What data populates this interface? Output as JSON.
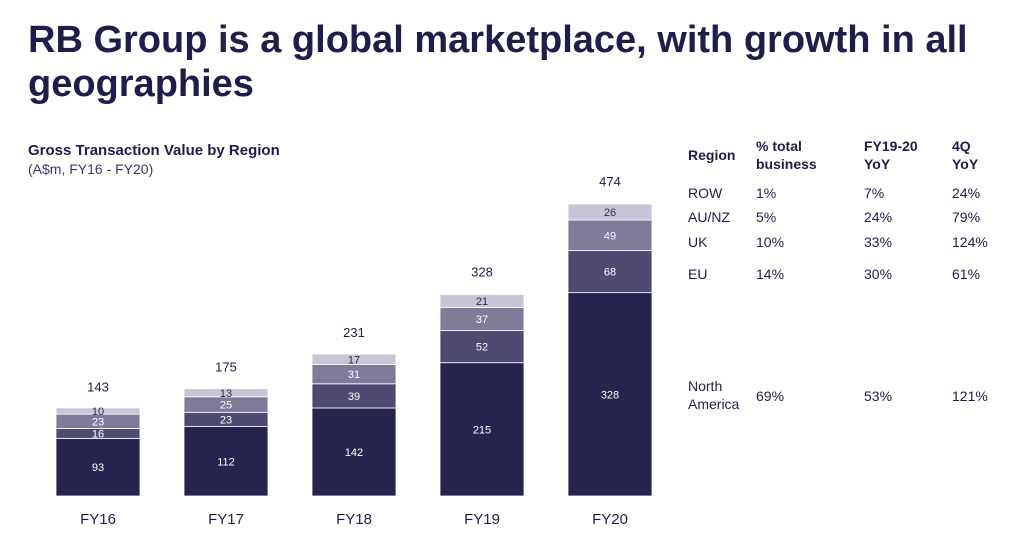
{
  "page": {
    "headline": "RB Group is a global marketplace, with growth in all geographies"
  },
  "chart_data": {
    "type": "bar",
    "stacked": true,
    "title": "Gross Transaction Value by Region",
    "subtitle": "(A$m, FY16 - FY20)",
    "categories": [
      "FY16",
      "FY17",
      "FY18",
      "FY19",
      "FY20"
    ],
    "totals": [
      143,
      175,
      231,
      328,
      474
    ],
    "series": [
      {
        "values": [
          93,
          112,
          142,
          215,
          328
        ],
        "color": "#26234f",
        "label_color": "#ffffff"
      },
      {
        "values": [
          16,
          23,
          39,
          52,
          68
        ],
        "color": "#4e4a72",
        "label_color": "#ffffff"
      },
      {
        "values": [
          23,
          25,
          31,
          37,
          49
        ],
        "color": "#7e7b98",
        "label_color": "#ffffff"
      },
      {
        "values": [
          10,
          13,
          17,
          21,
          26
        ],
        "color": "#c7c6d4",
        "label_color": "#2a2850"
      }
    ],
    "ylim": [
      0,
      500
    ],
    "grid": false,
    "legend": "none"
  },
  "table": {
    "headers": [
      {
        "line1": "Region",
        "line2": ""
      },
      {
        "line1": "% total",
        "line2": "business"
      },
      {
        "line1": "FY19-20",
        "line2": "YoY"
      },
      {
        "line1": "4Q",
        "line2": "YoY"
      }
    ],
    "rows": [
      {
        "region": "ROW",
        "region2": "",
        "pct": "1%",
        "fy": "7%",
        "q4": "24%"
      },
      {
        "region": "AU/NZ",
        "region2": "",
        "pct": "5%",
        "fy": "24%",
        "q4": "79%"
      },
      {
        "region": "UK",
        "region2": "",
        "pct": "10%",
        "fy": "33%",
        "q4": "124%"
      },
      {
        "region": "EU",
        "region2": "",
        "pct": "14%",
        "fy": "30%",
        "q4": "61%"
      },
      {
        "region": "North",
        "region2": "America",
        "pct": "69%",
        "fy": "53%",
        "q4": "121%"
      }
    ]
  }
}
